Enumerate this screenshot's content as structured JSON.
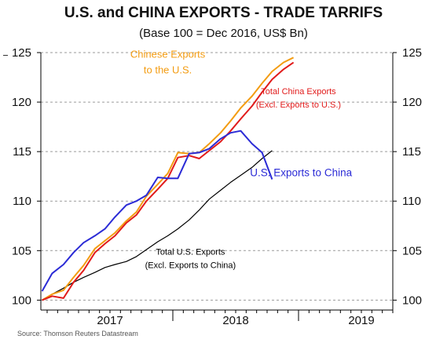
{
  "chart_data": {
    "type": "line",
    "title": "U.S. and CHINA EXPORTS - TRADE TARRIFS",
    "subtitle": "(Base 100 = Dec 2016, US$ Bn)",
    "source": "Source: Thomson Reuters Datastream",
    "ylim": [
      99,
      125
    ],
    "xlim": [
      2016.95,
      2019.75
    ],
    "yticks": [
      100,
      105,
      110,
      115,
      120,
      125
    ],
    "year_labels": [
      {
        "label": "2017",
        "x": 2017.5
      },
      {
        "label": "2018",
        "x": 2018.5
      },
      {
        "label": "2019",
        "x": 2019.5
      }
    ],
    "year_boundaries": [
      2018.0,
      2019.0
    ],
    "grid": true,
    "series": [
      {
        "name": "Total U.S. Exports (Excl. Exports to China)",
        "color": "#000000",
        "width": 1.2,
        "x": [
          2016.96,
          2017.04,
          2017.13,
          2017.21,
          2017.29,
          2017.38,
          2017.46,
          2017.54,
          2017.63,
          2017.71,
          2017.79,
          2017.88,
          2017.96,
          2018.04,
          2018.13,
          2018.21,
          2018.29,
          2018.38,
          2018.46,
          2018.54,
          2018.63,
          2018.71,
          2018.79
        ],
        "y": [
          100.0,
          100.6,
          101.2,
          101.8,
          102.3,
          102.8,
          103.3,
          103.6,
          103.9,
          104.4,
          105.1,
          105.9,
          106.5,
          107.2,
          108.1,
          109.1,
          110.2,
          111.1,
          111.9,
          112.6,
          113.4,
          114.3,
          115.1
        ]
      },
      {
        "name": "Chinese Exports to the U.S.",
        "color": "#f39c12",
        "width": 2,
        "x": [
          2016.96,
          2017.04,
          2017.13,
          2017.21,
          2017.29,
          2017.38,
          2017.46,
          2017.54,
          2017.63,
          2017.71,
          2017.79,
          2017.88,
          2017.96,
          2018.04,
          2018.13,
          2018.21,
          2018.29,
          2018.38,
          2018.46,
          2018.54,
          2018.63,
          2018.71,
          2018.79,
          2018.88,
          2018.96
        ],
        "y": [
          100.0,
          100.6,
          101.0,
          102.3,
          103.5,
          105.2,
          106.0,
          106.8,
          108.0,
          108.9,
          110.5,
          111.7,
          112.8,
          114.9,
          114.8,
          114.9,
          115.8,
          116.9,
          118.1,
          119.4,
          120.6,
          121.9,
          123.1,
          124.0,
          124.5
        ]
      },
      {
        "name": "Total China Exports (Excl. Exports to U.S.)",
        "color": "#e11b1b",
        "width": 2,
        "x": [
          2016.96,
          2017.04,
          2017.13,
          2017.21,
          2017.29,
          2017.38,
          2017.46,
          2017.54,
          2017.63,
          2017.71,
          2017.79,
          2017.88,
          2017.96,
          2018.04,
          2018.13,
          2018.21,
          2018.29,
          2018.38,
          2018.46,
          2018.54,
          2018.63,
          2018.71,
          2018.79,
          2018.88,
          2018.96
        ],
        "y": [
          100.0,
          100.4,
          100.2,
          101.8,
          103.0,
          104.8,
          105.7,
          106.5,
          107.8,
          108.6,
          110.0,
          111.2,
          112.3,
          114.4,
          114.6,
          114.3,
          115.1,
          116.0,
          117.1,
          118.3,
          119.6,
          121.0,
          122.3,
          123.3,
          124.0
        ]
      },
      {
        "name": "U.S. Exports to China",
        "color": "#2b2bd6",
        "width": 2,
        "x": [
          2016.96,
          2017.04,
          2017.13,
          2017.21,
          2017.29,
          2017.38,
          2017.46,
          2017.54,
          2017.63,
          2017.71,
          2017.79,
          2017.88,
          2017.96,
          2018.04,
          2018.13,
          2018.21,
          2018.29,
          2018.38,
          2018.46,
          2018.54,
          2018.63,
          2018.71,
          2018.79
        ],
        "y": [
          100.9,
          102.7,
          103.6,
          104.8,
          105.8,
          106.5,
          107.2,
          108.4,
          109.6,
          110.0,
          110.6,
          112.4,
          112.3,
          112.3,
          114.8,
          114.9,
          115.3,
          116.3,
          116.9,
          117.1,
          115.8,
          114.9,
          112.2
        ]
      }
    ],
    "annotations": [
      {
        "lines": [
          "Chinese Exports",
          "to the U.S."
        ],
        "color": "#f39c12",
        "x": 2017.96,
        "y": 124.5,
        "size": 13,
        "anchor": "middle"
      },
      {
        "lines": [
          "Total China Exports",
          "(Excl. Exports to U.S.)"
        ],
        "color": "#e11b1b",
        "x": 2019.0,
        "y": 120.8,
        "size": 11,
        "anchor": "middle"
      },
      {
        "lines": [
          "U.S. Exports to China"
        ],
        "color": "#2b2bd6",
        "x": 2019.02,
        "y": 112.5,
        "size": 13.5,
        "anchor": "middle"
      },
      {
        "lines": [
          "Total U.S. Exports",
          "(Excl. Exports to China)"
        ],
        "color": "#000000",
        "x": 2018.14,
        "y": 104.6,
        "size": 11,
        "anchor": "middle"
      }
    ]
  }
}
